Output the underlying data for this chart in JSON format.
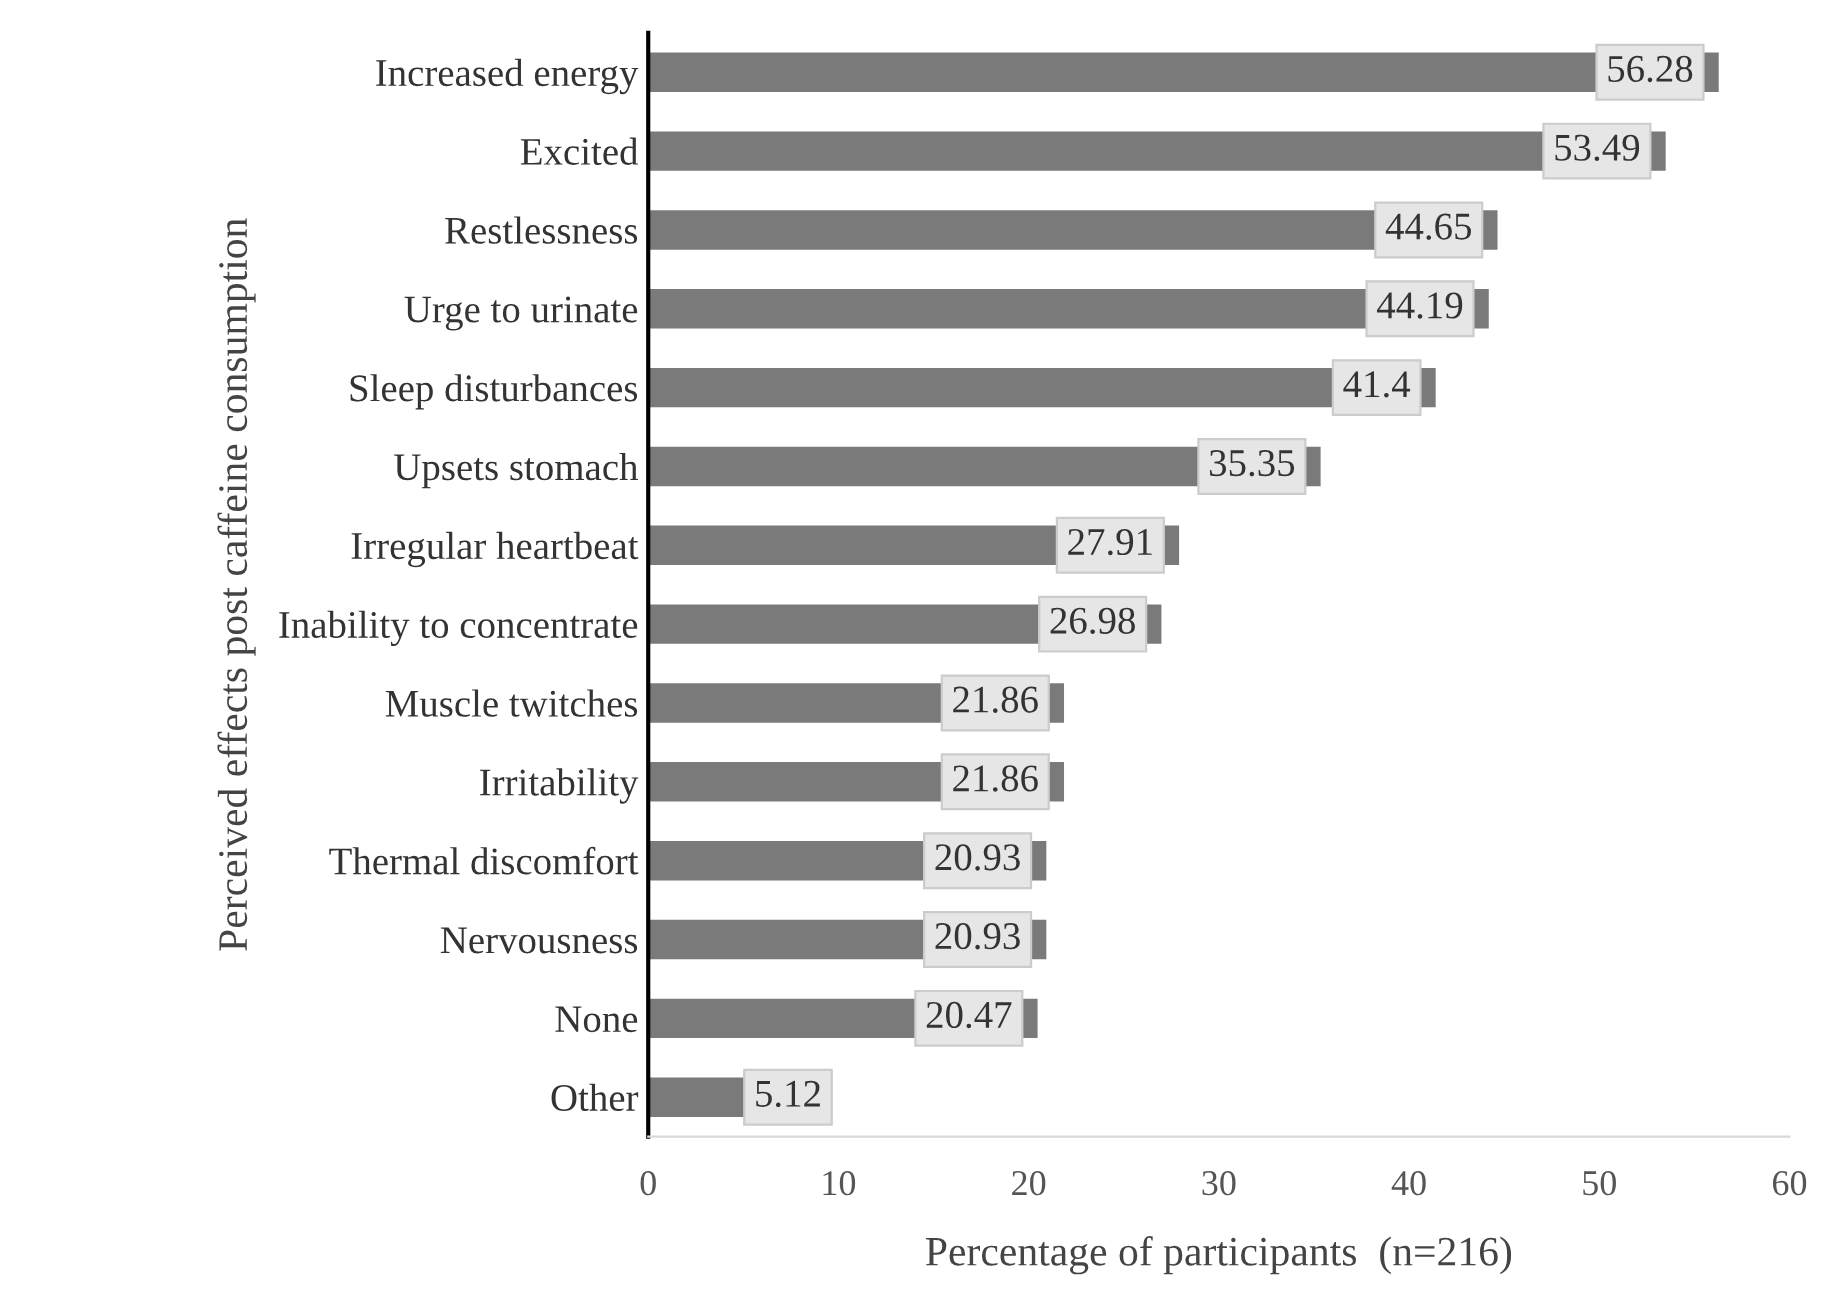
{
  "chart_data": {
    "type": "bar",
    "orientation": "horizontal",
    "xlabel": "Percentage of participants  (n=216)",
    "ylabel": "Perceived effects post caffeine consumption",
    "categories": [
      "Increased energy",
      "Excited",
      "Restlessness",
      "Urge to urinate",
      "Sleep disturbances",
      "Upsets stomach",
      "Irregular heartbeat",
      "Inability to concentrate",
      "Muscle twitches",
      "Irritability",
      "Thermal discomfort",
      "Nervousness",
      "None",
      "Other"
    ],
    "values": [
      56.28,
      53.49,
      44.65,
      44.19,
      41.4,
      35.35,
      27.91,
      26.98,
      21.86,
      21.86,
      20.93,
      20.93,
      20.47,
      5.12
    ],
    "color": "#7a7a7a",
    "xlim": [
      0,
      60
    ],
    "xticks": [
      0,
      10,
      20,
      30,
      40,
      50,
      60
    ],
    "data_labels": true,
    "grid": false,
    "legend": false
  }
}
